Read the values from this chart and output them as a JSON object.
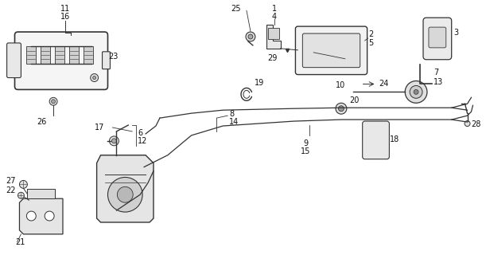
{
  "bg_color": "#ffffff",
  "line_color": "#333333",
  "text_color": "#111111",
  "fig_width": 6.11,
  "fig_height": 3.2,
  "dpi": 100
}
